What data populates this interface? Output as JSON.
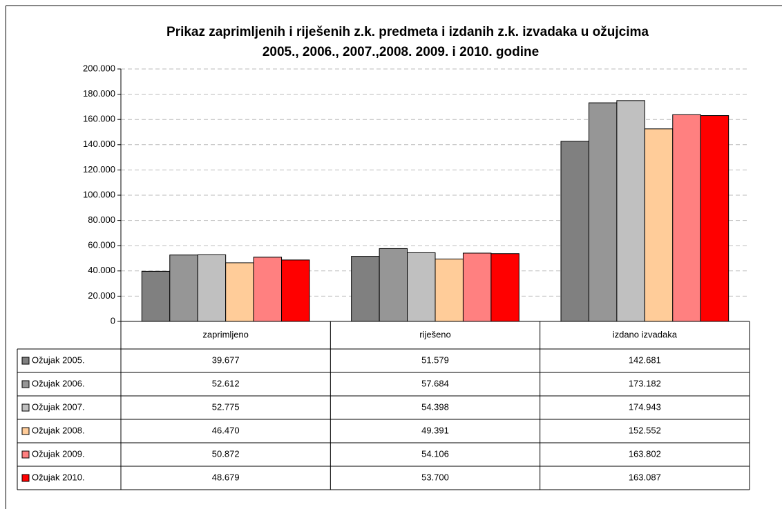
{
  "chart_data": {
    "type": "bar",
    "title": [
      "Prikaz zaprimljenih i riješenih z.k. predmeta i izdanih z.k. izvadaka u ožujcima",
      "2005., 2006., 2007.,2008. 2009. i 2010. godine"
    ],
    "categories": [
      "zaprimljeno",
      "riješeno",
      "izdano izvadaka"
    ],
    "series": [
      {
        "name": "Ožujak 2005.",
        "color": "#808080",
        "values": [
          39677,
          51579,
          142681
        ],
        "value_labels": [
          "39.677",
          "51.579",
          "142.681"
        ]
      },
      {
        "name": "Ožujak 2006.",
        "color": "#969696",
        "values": [
          52612,
          57684,
          173182
        ],
        "value_labels": [
          "52.612",
          "57.684",
          "173.182"
        ]
      },
      {
        "name": "Ožujak 2007.",
        "color": "#c0c0c0",
        "values": [
          52775,
          54398,
          174943
        ],
        "value_labels": [
          "52.775",
          "54.398",
          "174.943"
        ]
      },
      {
        "name": "Ožujak 2008.",
        "color": "#ffcc99",
        "values": [
          46470,
          49391,
          152552
        ],
        "value_labels": [
          "46.470",
          "49.391",
          "152.552"
        ]
      },
      {
        "name": "Ožujak 2009.",
        "color": "#ff8080",
        "values": [
          50872,
          54106,
          163802
        ],
        "value_labels": [
          "50.872",
          "54.106",
          "163.802"
        ]
      },
      {
        "name": "Ožujak 2010.",
        "color": "#ff0000",
        "values": [
          48679,
          53700,
          163087
        ],
        "value_labels": [
          "48.679",
          "53.700",
          "163.087"
        ]
      }
    ],
    "ylim": [
      0,
      200000
    ],
    "yticks": [
      0,
      {
        "value": 20000,
        "label": "20.000"
      },
      {
        "value": 40000,
        "label": "40.000"
      },
      {
        "value": 60000,
        "label": "60.000"
      },
      {
        "value": 80000,
        "label": "80.000"
      },
      {
        "value": 100000,
        "label": "100.000"
      },
      {
        "value": 120000,
        "label": "120.000"
      },
      {
        "value": 140000,
        "label": "140.000"
      },
      {
        "value": 160000,
        "label": "160.000"
      },
      {
        "value": 180000,
        "label": "180.000"
      },
      {
        "value": 200000,
        "label": "200.000"
      }
    ],
    "grid": true
  }
}
